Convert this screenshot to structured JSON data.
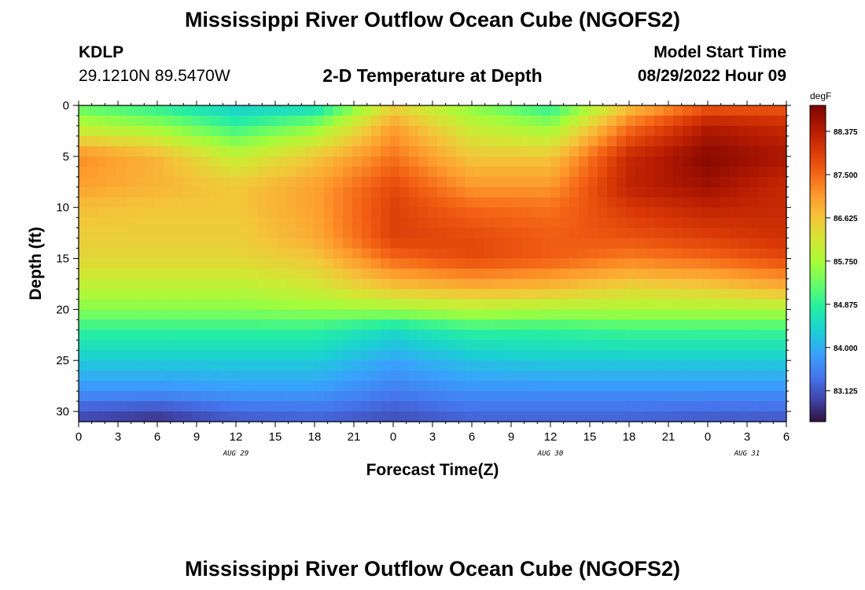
{
  "header": {
    "main_title": "Mississippi River Outflow Ocean Cube (NGOFS2)",
    "station_id": "KDLP",
    "station_coords": "29.1210N  89.5470W",
    "plot_title": "2-D Temperature at Depth",
    "model_start_label": "Model Start Time",
    "model_start_value": "08/29/2022 Hour 09"
  },
  "footer": {
    "repeated_title": "Mississippi River Outflow Ocean Cube (NGOFS2)"
  },
  "chart_data": {
    "type": "heatmap",
    "title": "2-D Temperature at Depth",
    "xlabel": "Forecast Time(Z)",
    "ylabel": "Depth (ft)",
    "x_unit": "forecast hours from 08/29/2022 00Z",
    "xlim": [
      0,
      54
    ],
    "ylim": [
      0,
      31
    ],
    "y_inverted": true,
    "x_ticks": [
      0,
      3,
      6,
      9,
      12,
      15,
      18,
      21,
      24,
      27,
      30,
      33,
      36,
      39,
      42,
      45,
      48,
      51,
      54
    ],
    "x_tick_labels": [
      "0",
      "3",
      "6",
      "9",
      "12",
      "15",
      "18",
      "21",
      "0",
      "3",
      "6",
      "9",
      "12",
      "15",
      "18",
      "21",
      "0",
      "3",
      "6"
    ],
    "day_labels": [
      {
        "x": 12,
        "label": "AUG 29"
      },
      {
        "x": 36,
        "label": "AUG 30"
      },
      {
        "x": 51,
        "label": "AUG 31"
      }
    ],
    "y_ticks": [
      0,
      5,
      10,
      15,
      20,
      25,
      30
    ],
    "y_tick_labels": [
      "0",
      "5",
      "10",
      "15",
      "20",
      "25",
      "30"
    ],
    "colorbar": {
      "unit": "degF",
      "range": [
        82.5,
        88.9
      ],
      "ticks": [
        83.125,
        84.0,
        84.875,
        85.75,
        86.625,
        87.5,
        88.375
      ],
      "tick_labels": [
        "83.125",
        "84.000",
        "84.875",
        "85.750",
        "86.625",
        "87.500",
        "88.375"
      ],
      "colors": [
        "#30123b",
        "#4145ab",
        "#4675ed",
        "#39a2fc",
        "#1bcfd4",
        "#24eca6",
        "#61fc6c",
        "#a4fc3b",
        "#d1e834",
        "#f3c63a",
        "#fe9b2d",
        "#f36315",
        "#d93806",
        "#b11901",
        "#7a0402"
      ]
    },
    "grid_x": [
      0,
      6,
      12,
      18,
      24,
      30,
      36,
      42,
      48,
      54
    ],
    "grid_y": [
      0,
      2,
      5,
      8,
      10,
      13,
      15,
      18,
      20,
      22,
      25,
      28,
      31
    ],
    "values": [
      [
        85.2,
        84.8,
        84.3,
        84.4,
        86.4,
        85.5,
        84.8,
        86.6,
        87.6,
        87.6
      ],
      [
        85.9,
        85.6,
        84.9,
        85.5,
        87.0,
        86.0,
        85.6,
        87.4,
        88.4,
        88.2
      ],
      [
        87.2,
        86.8,
        86.0,
        86.6,
        87.4,
        86.6,
        86.6,
        88.2,
        88.8,
        88.5
      ],
      [
        87.0,
        86.8,
        86.6,
        87.0,
        87.8,
        87.1,
        87.1,
        88.3,
        88.6,
        88.2
      ],
      [
        86.7,
        86.6,
        86.6,
        87.0,
        87.9,
        87.5,
        87.4,
        88.0,
        88.3,
        88.2
      ],
      [
        86.5,
        86.5,
        86.5,
        86.9,
        87.9,
        87.8,
        87.6,
        87.7,
        87.9,
        88.1
      ],
      [
        86.4,
        86.4,
        86.4,
        86.6,
        87.5,
        87.8,
        87.6,
        87.3,
        87.5,
        87.8
      ],
      [
        85.9,
        85.9,
        85.9,
        86.1,
        86.6,
        86.8,
        86.7,
        86.4,
        86.5,
        86.8
      ],
      [
        85.5,
        85.5,
        85.5,
        85.6,
        85.7,
        85.9,
        85.8,
        85.8,
        85.8,
        85.8
      ],
      [
        84.9,
        84.9,
        84.9,
        84.9,
        84.5,
        84.9,
        84.9,
        85.0,
        85.0,
        85.0
      ],
      [
        84.3,
        84.3,
        84.3,
        84.3,
        83.9,
        84.2,
        84.3,
        84.3,
        84.3,
        84.3
      ],
      [
        83.7,
        83.7,
        83.8,
        83.8,
        83.5,
        83.7,
        83.7,
        83.7,
        83.7,
        83.7
      ],
      [
        82.9,
        82.7,
        83.1,
        83.2,
        83.0,
        83.2,
        83.2,
        83.2,
        83.1,
        83.1
      ]
    ]
  }
}
